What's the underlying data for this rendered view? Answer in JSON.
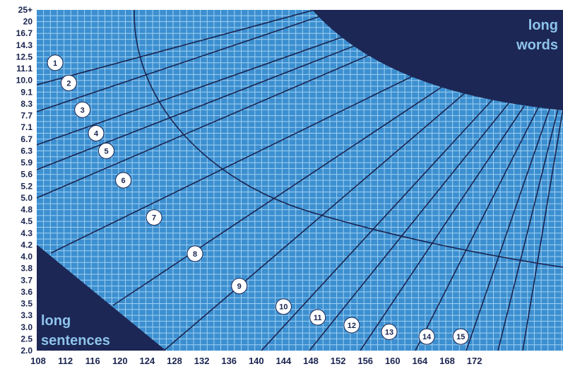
{
  "chart_data": {
    "type": "line",
    "colors": {
      "plot_fill": "#3c8fd0",
      "grid": "#9fd0f2",
      "lines": "#1a2450",
      "region_fill": "#1c2756",
      "region_text": "#8ec3ea",
      "marker_fill": "#ffffff"
    },
    "x_ticks": [
      "108",
      "112",
      "116",
      "120",
      "124",
      "128",
      "132",
      "136",
      "140",
      "144",
      "148",
      "152",
      "156",
      "160",
      "164",
      "168",
      "172"
    ],
    "y_ticks": [
      "25+",
      "20",
      "16.7",
      "14.3",
      "12.5",
      "11.1",
      "10.0",
      "9.1",
      "8.3",
      "7.7",
      "7.1",
      "6.7",
      "6.3",
      "5.9",
      "5.6",
      "5.2",
      "5.0",
      "4.8",
      "4.5",
      "4.3",
      "4.2",
      "4.0",
      "3.8",
      "3.7",
      "3.6",
      "3.5",
      "3.3",
      "3.0",
      "2.5",
      "2.0"
    ],
    "xlim": [
      108,
      173
    ],
    "levels": [
      {
        "label": "1",
        "x": 110.5,
        "y": "11.8"
      },
      {
        "label": "2",
        "x": 112.5,
        "y": "9.8"
      },
      {
        "label": "3",
        "x": 114.5,
        "y": "8.0"
      },
      {
        "label": "4",
        "x": 116.5,
        "y": "6.9"
      },
      {
        "label": "5",
        "x": 118.0,
        "y": "6.3"
      },
      {
        "label": "6",
        "x": 120.5,
        "y": "5.4"
      },
      {
        "label": "7",
        "x": 125.0,
        "y": "4.6"
      },
      {
        "label": "8",
        "x": 131.0,
        "y": "4.05"
      },
      {
        "label": "9",
        "x": 137.5,
        "y": "3.65"
      },
      {
        "label": "10",
        "x": 144.0,
        "y": "3.45"
      },
      {
        "label": "11",
        "x": 149.0,
        "y": "3.25"
      },
      {
        "label": "12",
        "x": 154.0,
        "y": "3.05"
      },
      {
        "label": "13",
        "x": 159.5,
        "y": "2.8"
      },
      {
        "label": "14",
        "x": 165.0,
        "y": "2.6"
      },
      {
        "label": "15",
        "x": 170.0,
        "y": "2.6"
      }
    ],
    "regions": {
      "long_words": "long words",
      "long_sentences": "long sentences"
    }
  }
}
